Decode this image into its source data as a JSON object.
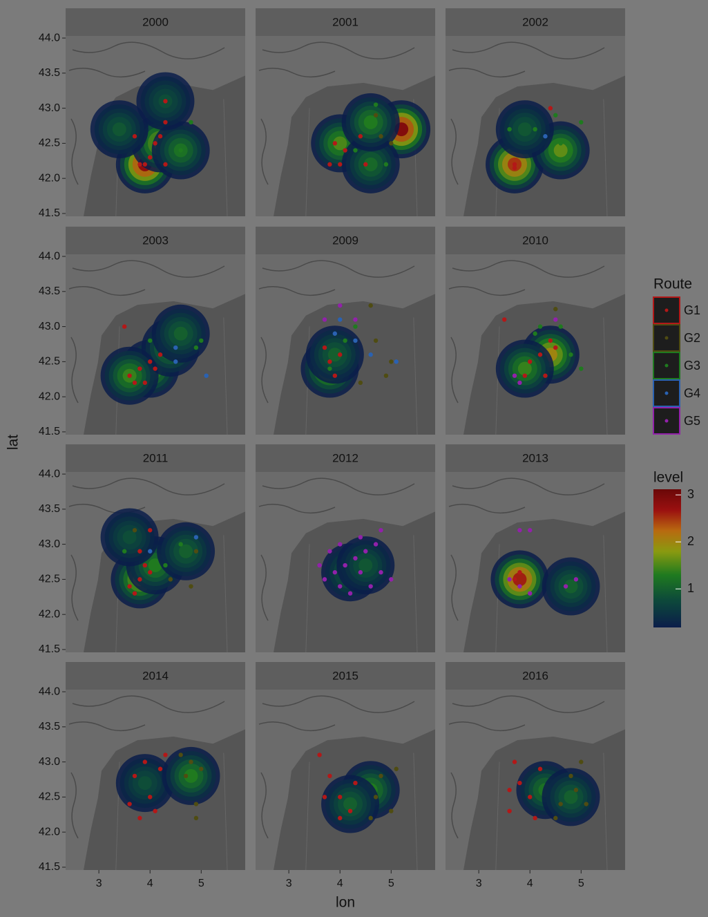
{
  "chart_data": {
    "type": "facet_map",
    "x_label": "lon",
    "y_label": "lat",
    "xlim": [
      2.35,
      5.86
    ],
    "xticks": [
      3,
      4,
      5
    ],
    "ylim": [
      41.46,
      44.03
    ],
    "yticks": [
      41.5,
      {
        "value": 42,
        "label": "42.0"
      },
      42.5,
      {
        "value": 43,
        "label": "43.0"
      },
      43.5,
      {
        "value": 44,
        "label": "44.0"
      }
    ],
    "legend_title": "Route",
    "routes": [
      {
        "name": "G1",
        "color": "#b31818"
      },
      {
        "name": "G2",
        "color": "#4f4c12"
      },
      {
        "name": "G3",
        "color": "#1f7a1f"
      },
      {
        "name": "G4",
        "color": "#2a62b2"
      },
      {
        "name": "G5",
        "color": "#9221aa"
      }
    ],
    "colorbar_title": "level",
    "level_lim": [
      0.18,
      3.12
    ],
    "level_ticks": [
      1,
      2,
      3
    ],
    "facets": [
      {
        "title": "2000",
        "density": {
          "x": [
            3.9,
            4.2,
            3.4,
            4.6,
            4.3
          ],
          "y": [
            42.2,
            42.5,
            42.7,
            42.4,
            43.1
          ],
          "level": [
            2.8,
            1.8,
            0.9,
            1.2,
            0.8
          ]
        },
        "series": [
          {
            "name": "G1",
            "x": [
              3.8,
              3.9,
              4.0,
              4.1,
              3.7,
              4.2,
              4.3,
              4.3,
              4.3
            ],
            "y": [
              42.2,
              42.2,
              42.3,
              42.5,
              42.6,
              42.6,
              42.8,
              43.1,
              42.2
            ]
          },
          {
            "name": "G3",
            "x": [
              4.8,
              4.6
            ],
            "y": [
              42.8,
              42.4
            ]
          }
        ]
      },
      {
        "title": "2001",
        "density": {
          "x": [
            5.2,
            4.0,
            4.6,
            4.6
          ],
          "y": [
            42.7,
            42.5,
            42.2,
            42.8
          ],
          "level": [
            2.9,
            1.5,
            1.1,
            1.3
          ]
        },
        "series": [
          {
            "name": "G1",
            "x": [
              3.9,
              4.1,
              3.8,
              4.0,
              4.4,
              4.5
            ],
            "y": [
              42.5,
              42.4,
              42.2,
              42.2,
              42.6,
              42.2
            ]
          },
          {
            "name": "G2",
            "x": [
              4.7,
              4.8,
              5.0
            ],
            "y": [
              42.9,
              42.6,
              42.5
            ]
          },
          {
            "name": "G3",
            "x": [
              4.7,
              4.3,
              4.9
            ],
            "y": [
              43.05,
              42.4,
              42.2
            ]
          }
        ]
      },
      {
        "title": "2002",
        "density": {
          "x": [
            3.7,
            4.6,
            3.9
          ],
          "y": [
            42.2,
            42.4,
            42.7
          ],
          "level": [
            2.5,
            1.6,
            0.9
          ]
        },
        "series": [
          {
            "name": "G1",
            "x": [
              3.7,
              3.7,
              4.4
            ],
            "y": [
              42.2,
              42.15,
              43.0
            ]
          },
          {
            "name": "G3",
            "x": [
              3.6,
              4.1,
              4.6,
              4.8,
              5.0,
              4.5
            ],
            "y": [
              42.7,
              42.7,
              42.5,
              42.4,
              42.8,
              42.9
            ]
          },
          {
            "name": "G4",
            "x": [
              4.3
            ],
            "y": [
              42.6
            ]
          }
        ]
      },
      {
        "title": "2003",
        "density": {
          "x": [
            4.0,
            4.4,
            4.6,
            3.6
          ],
          "y": [
            42.4,
            42.7,
            42.9,
            42.3
          ],
          "level": [
            1.6,
            1.3,
            1.0,
            1.4
          ]
        },
        "series": [
          {
            "name": "G1",
            "x": [
              3.6,
              3.8,
              4.0,
              4.1,
              3.9,
              3.7,
              4.2,
              3.5
            ],
            "y": [
              42.3,
              42.4,
              42.5,
              42.4,
              42.2,
              42.2,
              42.6,
              43.0
            ]
          },
          {
            "name": "G3",
            "x": [
              5.0,
              4.9,
              4.0
            ],
            "y": [
              42.8,
              42.7,
              42.8
            ]
          },
          {
            "name": "G4",
            "x": [
              4.5,
              4.5,
              5.1
            ],
            "y": [
              42.5,
              42.7,
              42.3
            ]
          }
        ]
      },
      {
        "title": "2009",
        "density": {
          "x": [
            3.8,
            3.9
          ],
          "y": [
            42.4,
            42.6
          ],
          "level": [
            1.8,
            1.0
          ]
        },
        "series": [
          {
            "name": "G1",
            "x": [
              3.8,
              3.9,
              4.0,
              3.7
            ],
            "y": [
              42.5,
              42.3,
              42.6,
              42.7
            ]
          },
          {
            "name": "G2",
            "x": [
              4.6,
              4.7,
              4.9,
              5.0,
              4.4
            ],
            "y": [
              43.3,
              42.8,
              42.3,
              42.5,
              42.2
            ]
          },
          {
            "name": "G3",
            "x": [
              3.8,
              4.1,
              4.3
            ],
            "y": [
              42.4,
              42.8,
              43.0
            ]
          },
          {
            "name": "G4",
            "x": [
              3.9,
              4.3,
              4.6,
              5.1,
              4.0
            ],
            "y": [
              42.9,
              42.8,
              42.6,
              42.5,
              43.1
            ]
          },
          {
            "name": "G5",
            "x": [
              4.0,
              4.3,
              3.7
            ],
            "y": [
              43.3,
              43.1,
              43.1
            ]
          }
        ]
      },
      {
        "title": "2010",
        "density": {
          "x": [
            4.4,
            3.9
          ],
          "y": [
            42.6,
            42.4
          ],
          "level": [
            2.0,
            1.4
          ]
        },
        "series": [
          {
            "name": "G1",
            "x": [
              4.2,
              4.3,
              4.5,
              4.0,
              3.9,
              4.4,
              3.5
            ],
            "y": [
              42.6,
              42.3,
              42.7,
              42.5,
              42.3,
              42.8,
              43.1
            ]
          },
          {
            "name": "G2",
            "x": [
              4.5
            ],
            "y": [
              43.25
            ]
          },
          {
            "name": "G3",
            "x": [
              4.1,
              4.6,
              4.2,
              4.8,
              5.0
            ],
            "y": [
              42.9,
              43.0,
              43.0,
              42.6,
              42.4
            ]
          },
          {
            "name": "G5",
            "x": [
              3.8,
              4.5,
              3.7
            ],
            "y": [
              42.2,
              43.1,
              42.3
            ]
          }
        ]
      },
      {
        "title": "2011",
        "density": {
          "x": [
            3.8,
            4.1,
            4.7,
            3.6
          ],
          "y": [
            42.5,
            42.7,
            42.9,
            43.1
          ],
          "level": [
            1.8,
            1.3,
            1.0,
            0.8
          ]
        },
        "series": [
          {
            "name": "G1",
            "x": [
              3.7,
              3.8,
              3.9,
              4.0,
              3.6,
              3.8,
              4.0
            ],
            "y": [
              42.3,
              42.5,
              42.7,
              42.6,
              42.4,
              42.9,
              43.2
            ]
          },
          {
            "name": "G2",
            "x": [
              4.9,
              4.8,
              4.4,
              3.7
            ],
            "y": [
              42.9,
              42.4,
              42.5,
              43.2
            ]
          },
          {
            "name": "G3",
            "x": [
              3.5,
              4.6,
              4.3
            ],
            "y": [
              42.9,
              43.0,
              42.7
            ]
          },
          {
            "name": "G4",
            "x": [
              4.9,
              4.0
            ],
            "y": [
              43.1,
              42.9
            ]
          }
        ]
      },
      {
        "title": "2012",
        "density": {
          "x": [
            4.2,
            4.5
          ],
          "y": [
            42.6,
            42.7
          ],
          "level": [
            1.0,
            0.9
          ]
        },
        "series": [
          {
            "name": "G5",
            "x": [
              3.7,
              3.9,
              4.1,
              4.3,
              4.5,
              4.7,
              3.8,
              4.0,
              4.2,
              4.4,
              4.6,
              4.8,
              3.6,
              4.0,
              4.4,
              4.8,
              5.0
            ],
            "y": [
              42.5,
              42.6,
              42.7,
              42.8,
              42.9,
              43.0,
              42.9,
              42.4,
              42.3,
              42.6,
              42.4,
              42.6,
              42.7,
              43.0,
              43.1,
              43.2,
              42.5
            ]
          }
        ]
      },
      {
        "title": "2013",
        "density": {
          "x": [
            3.8,
            4.8
          ],
          "y": [
            42.5,
            42.4
          ],
          "level": [
            2.6,
            1.0
          ]
        },
        "series": [
          {
            "name": "G1",
            "x": [
              3.7,
              3.8
            ],
            "y": [
              42.5,
              42.6
            ]
          },
          {
            "name": "G5",
            "x": [
              3.6,
              3.8,
              4.0,
              4.7,
              4.9,
              4.0,
              3.8
            ],
            "y": [
              42.5,
              42.4,
              42.3,
              42.4,
              42.5,
              43.2,
              43.2
            ]
          }
        ]
      },
      {
        "title": "2014",
        "density": {
          "x": [
            3.9,
            4.8
          ],
          "y": [
            42.7,
            42.8
          ],
          "level": [
            0.8,
            1.3
          ]
        },
        "series": [
          {
            "name": "G1",
            "x": [
              3.6,
              3.7,
              3.8,
              4.0,
              4.2,
              4.3,
              3.9,
              4.1
            ],
            "y": [
              42.4,
              42.8,
              42.2,
              42.5,
              42.9,
              43.1,
              43.0,
              42.3
            ]
          },
          {
            "name": "G2",
            "x": [
              4.7,
              4.8,
              4.9,
              5.0,
              4.6,
              4.9
            ],
            "y": [
              42.8,
              43.0,
              42.4,
              42.9,
              43.1,
              42.2
            ]
          }
        ]
      },
      {
        "title": "2015",
        "density": {
          "x": [
            4.6,
            4.2
          ],
          "y": [
            42.6,
            42.4
          ],
          "level": [
            1.3,
            1.0
          ]
        },
        "series": [
          {
            "name": "G1",
            "x": [
              3.6,
              3.8,
              4.0,
              4.2,
              3.7,
              4.0,
              4.3
            ],
            "y": [
              43.1,
              42.8,
              42.5,
              42.3,
              42.5,
              42.2,
              42.7
            ]
          },
          {
            "name": "G2",
            "x": [
              4.7,
              4.8,
              5.0,
              4.6,
              5.1
            ],
            "y": [
              42.5,
              42.8,
              42.3,
              42.2,
              42.9
            ]
          }
        ]
      },
      {
        "title": "2016",
        "density": {
          "x": [
            4.3,
            4.8
          ],
          "y": [
            42.6,
            42.5
          ],
          "level": [
            1.2,
            1.0
          ]
        },
        "series": [
          {
            "name": "G1",
            "x": [
              3.6,
              3.8,
              4.0,
              4.2,
              3.7,
              4.1,
              3.6
            ],
            "y": [
              42.3,
              42.7,
              42.5,
              42.9,
              43.0,
              42.2,
              42.6
            ]
          },
          {
            "name": "G2",
            "x": [
              4.6,
              4.8,
              5.0,
              5.1,
              4.5,
              4.9
            ],
            "y": [
              42.4,
              42.8,
              43.0,
              42.4,
              42.2,
              42.6
            ]
          }
        ]
      }
    ]
  }
}
